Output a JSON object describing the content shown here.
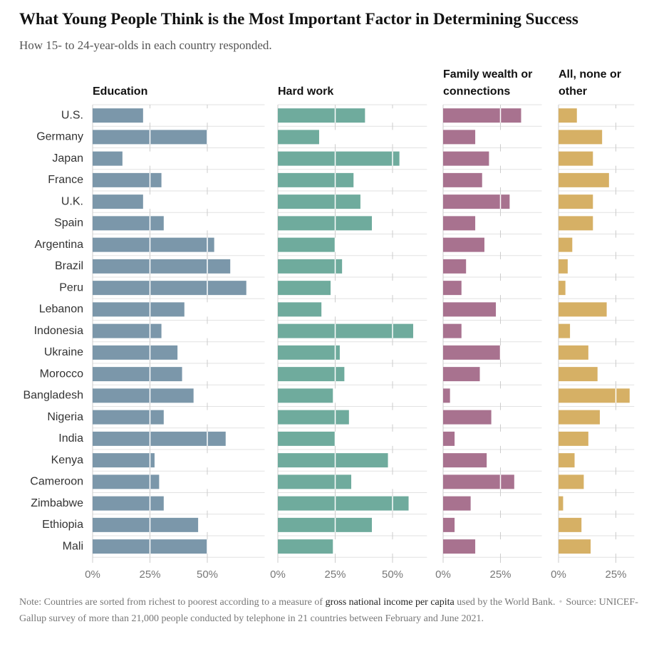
{
  "chart_data": {
    "type": "bar",
    "orientation": "horizontal",
    "title": "What Young People Think is the Most Important Factor in Determining Success",
    "subtitle": "How 15- to 24-year-olds in each country responded.",
    "categories": [
      "U.S.",
      "Germany",
      "Japan",
      "France",
      "U.K.",
      "Spain",
      "Argentina",
      "Brazil",
      "Peru",
      "Lebanon",
      "Indonesia",
      "Ukraine",
      "Morocco",
      "Bangladesh",
      "Nigeria",
      "India",
      "Kenya",
      "Cameroon",
      "Zimbabwe",
      "Ethiopia",
      "Mali"
    ],
    "series": [
      {
        "name": "Education",
        "color": "#7b97aa",
        "values": [
          22,
          50,
          13,
          30,
          22,
          31,
          53,
          60,
          67,
          40,
          30,
          37,
          39,
          44,
          31,
          58,
          27,
          29,
          31,
          46,
          50
        ],
        "xlim": [
          0,
          75
        ],
        "xticks": [
          {
            "value": 0,
            "label": "0%"
          },
          {
            "value": 25,
            "label": "25%"
          },
          {
            "value": 50,
            "label": "50%"
          }
        ]
      },
      {
        "name": "Hard work",
        "color": "#6fab9d",
        "values": [
          38,
          18,
          53,
          33,
          36,
          41,
          25,
          28,
          23,
          19,
          59,
          27,
          29,
          24,
          31,
          25,
          48,
          32,
          57,
          41,
          24
        ],
        "xlim": [
          0,
          65
        ],
        "xticks": [
          {
            "value": 0,
            "label": "0%"
          },
          {
            "value": 25,
            "label": "25%"
          },
          {
            "value": 50,
            "label": "50%"
          }
        ]
      },
      {
        "name": "Family wealth or connections",
        "color": "#a8728f",
        "values": [
          34,
          14,
          20,
          17,
          29,
          14,
          18,
          10,
          8,
          23,
          8,
          25,
          16,
          3,
          21,
          5,
          19,
          31,
          12,
          5,
          14
        ],
        "xlim": [
          0,
          43
        ],
        "xticks": [
          {
            "value": 0,
            "label": "0%"
          },
          {
            "value": 25,
            "label": "25%"
          }
        ]
      },
      {
        "name": "All, none or other",
        "color": "#d6b065",
        "values": [
          8,
          19,
          15,
          22,
          15,
          15,
          6,
          4,
          3,
          21,
          5,
          13,
          17,
          31,
          18,
          13,
          7,
          11,
          2,
          10,
          14
        ],
        "xlim": [
          0,
          33
        ],
        "xticks": [
          {
            "value": 0,
            "label": "0%"
          },
          {
            "value": 25,
            "label": "25%"
          }
        ]
      }
    ],
    "grid": true,
    "note_prefix": "Note: Countries are sorted from richest to poorest according to a measure of",
    "note_link": "gross national income per capita",
    "note_suffix": "used by the World Bank.",
    "source": "Source: UNICEF-Gallup survey of more than 21,000 people conducted by telephone in 21 countries between February and June 2021."
  }
}
